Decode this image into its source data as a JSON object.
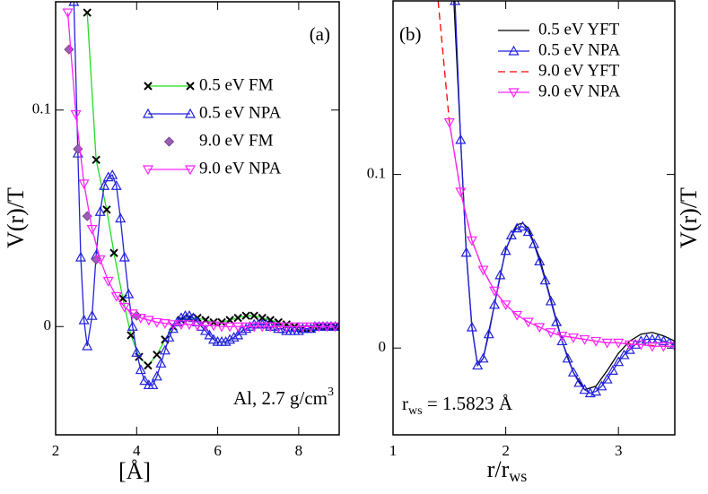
{
  "chart_data": [
    {
      "type": "line",
      "xlabel": "[Å]",
      "ylabel": "V(r)/T",
      "annotations": [
        {
          "text": "(a)"
        },
        {
          "text": "Al, 2.7 g/cm",
          "sup": "3"
        }
      ],
      "xlim": [
        2,
        9
      ],
      "ylim": [
        -0.05,
        0.15
      ],
      "xticks": [
        2,
        4,
        6,
        8
      ],
      "yticks": [
        0,
        0.1
      ],
      "legend": "upper right",
      "series": [
        {
          "name": "0.5 eV FM",
          "color": "#22dd22",
          "marker": "x",
          "line": true,
          "x": [
            2.78,
            3.0,
            3.26,
            3.44,
            3.66,
            3.86,
            4.06,
            4.28,
            4.5,
            4.7,
            4.9,
            5.1,
            5.3,
            5.5,
            5.7,
            5.9,
            6.1,
            6.3,
            6.5,
            6.7,
            6.9,
            7.1,
            7.3,
            7.5,
            7.7,
            7.9,
            8.1,
            8.3,
            8.5,
            8.7,
            8.9
          ],
          "values": [
            0.145,
            0.077,
            0.054,
            0.034,
            0.013,
            -0.004,
            -0.014,
            -0.018,
            -0.013,
            -0.006,
            0.0,
            0.003,
            0.004,
            0.004,
            0.003,
            0.002,
            0.002,
            0.003,
            0.004,
            0.005,
            0.005,
            0.004,
            0.003,
            0.002,
            0.001,
            0.0,
            -0.001,
            -0.001,
            0.0,
            0.0,
            0.0
          ]
        },
        {
          "name": "0.5 eV NPA",
          "color": "#2222dd",
          "marker": "triangle-up",
          "line": true,
          "x": [
            2.45,
            2.55,
            2.62,
            2.7,
            2.78,
            2.9,
            3.0,
            3.1,
            3.2,
            3.3,
            3.4,
            3.5,
            3.6,
            3.7,
            3.8,
            3.9,
            4.0,
            4.1,
            4.2,
            4.3,
            4.4,
            4.5,
            4.6,
            4.7,
            4.8,
            4.9,
            5.0,
            5.1,
            5.2,
            5.3,
            5.4,
            5.5,
            5.6,
            5.7,
            5.8,
            5.9,
            6.0,
            6.1,
            6.2,
            6.3,
            6.4,
            6.5,
            6.6,
            6.7,
            6.8,
            6.9,
            7.0,
            7.1,
            7.2,
            7.3,
            7.4,
            7.5,
            7.6,
            7.7,
            7.8,
            7.9,
            8.0,
            8.1,
            8.2,
            8.3,
            8.4,
            8.5,
            8.6,
            8.7,
            8.8,
            8.9,
            9.0
          ],
          "values": [
            0.15,
            0.08,
            0.032,
            0.003,
            -0.009,
            0.005,
            0.033,
            0.053,
            0.065,
            0.069,
            0.07,
            0.065,
            0.05,
            0.032,
            0.015,
            0.0,
            -0.012,
            -0.02,
            -0.025,
            -0.027,
            -0.027,
            -0.023,
            -0.017,
            -0.011,
            -0.005,
            -0.001,
            0.002,
            0.004,
            0.005,
            0.005,
            0.004,
            0.002,
            0.0,
            -0.002,
            -0.004,
            -0.006,
            -0.007,
            -0.007,
            -0.007,
            -0.006,
            -0.005,
            -0.004,
            -0.002,
            -0.001,
            0.0,
            0.001,
            0.001,
            0.001,
            0.001,
            0.0,
            0.0,
            -0.001,
            -0.001,
            -0.002,
            -0.002,
            -0.002,
            -0.002,
            -0.001,
            -0.001,
            -0.001,
            0.0,
            0.0,
            0.0,
            0.0,
            0.0,
            0.0,
            0.0
          ]
        },
        {
          "name": "9.0 eV FM",
          "color": "#9a5fb4",
          "marker": "diamond",
          "line": false,
          "x": [
            2.33,
            2.55,
            2.78,
            3.0,
            4.0
          ],
          "values": [
            0.128,
            0.082,
            0.051,
            0.031,
            0.005
          ]
        },
        {
          "name": "9.0 eV  NPA",
          "color": "#ff22ff",
          "marker": "triangle-down",
          "line": true,
          "x": [
            2.3,
            2.5,
            2.7,
            2.9,
            3.1,
            3.3,
            3.5,
            3.7,
            3.9,
            4.1,
            4.3,
            4.5,
            4.7,
            4.9,
            5.1,
            5.3,
            5.5,
            5.7,
            5.9,
            6.1,
            6.3,
            6.5,
            6.7,
            6.9,
            7.1,
            7.3,
            7.5,
            7.7,
            7.9,
            8.1,
            8.3,
            8.5,
            8.7,
            8.9
          ],
          "values": [
            0.145,
            0.098,
            0.066,
            0.045,
            0.031,
            0.021,
            0.014,
            0.009,
            0.006,
            0.004,
            0.003,
            0.002,
            0.0015,
            0.001,
            0.001,
            0.001,
            0.0005,
            0.0005,
            0.0005,
            0.0,
            0.0,
            0.0,
            0.0,
            0.0,
            0.0,
            0.0,
            0.0,
            0.0,
            0.0,
            0.0,
            0.0,
            0.0,
            0.0,
            0.0
          ]
        }
      ]
    },
    {
      "type": "line",
      "xlabel": {
        "text": "r/r",
        "sub": "ws"
      },
      "ylabel": "V(r)/T",
      "annotations": [
        {
          "text": "(b)"
        },
        {
          "text": "r",
          "sub": "ws",
          "tail": " = 1.5823 Å"
        }
      ],
      "xlim": [
        1,
        3.5
      ],
      "ylim": [
        -0.05,
        0.2
      ],
      "xticks": [
        1,
        2,
        3
      ],
      "yticks": [
        0,
        0.1
      ],
      "legend": "upper right",
      "series": [
        {
          "name": "0.5 eV YFT",
          "color": "#000000",
          "line": true,
          "x": [
            1.54,
            1.6,
            1.65,
            1.7,
            1.75,
            1.8,
            1.9,
            2.0,
            2.1,
            2.15,
            2.2,
            2.3,
            2.4,
            2.5,
            2.6,
            2.7,
            2.8,
            2.9,
            3.0,
            3.1,
            3.2,
            3.3,
            3.4,
            3.5
          ],
          "values": [
            0.2,
            0.12,
            0.055,
            0.012,
            -0.01,
            -0.006,
            0.025,
            0.057,
            0.071,
            0.072,
            0.069,
            0.052,
            0.028,
            0.004,
            -0.014,
            -0.024,
            -0.022,
            -0.013,
            -0.003,
            0.004,
            0.008,
            0.009,
            0.007,
            0.004
          ]
        },
        {
          "name": "0.5 eV NPA",
          "color": "#2222dd",
          "marker": "triangle-up",
          "line": true,
          "x": [
            1.55,
            1.6,
            1.65,
            1.7,
            1.75,
            1.8,
            1.85,
            1.9,
            1.95,
            2.0,
            2.05,
            2.1,
            2.15,
            2.2,
            2.25,
            2.3,
            2.35,
            2.4,
            2.45,
            2.5,
            2.55,
            2.6,
            2.65,
            2.7,
            2.75,
            2.8,
            2.85,
            2.9,
            2.95,
            3.0,
            3.05,
            3.1,
            3.15,
            3.2,
            3.25,
            3.3,
            3.35,
            3.4,
            3.45,
            3.5
          ],
          "values": [
            0.2,
            0.12,
            0.055,
            0.012,
            -0.01,
            -0.006,
            0.008,
            0.025,
            0.042,
            0.056,
            0.065,
            0.069,
            0.07,
            0.067,
            0.06,
            0.05,
            0.039,
            0.027,
            0.015,
            0.004,
            -0.006,
            -0.014,
            -0.02,
            -0.024,
            -0.026,
            -0.025,
            -0.022,
            -0.018,
            -0.013,
            -0.008,
            -0.004,
            -0.001,
            0.002,
            0.004,
            0.005,
            0.005,
            0.005,
            0.004,
            0.003,
            0.002
          ]
        },
        {
          "name": "9.0 eV YFT",
          "color": "#ff0000",
          "dash": true,
          "line": true,
          "x": [
            1.4,
            1.5,
            1.6,
            1.7,
            1.8,
            1.9,
            2.0,
            2.1,
            2.2,
            2.3,
            2.4,
            2.5,
            2.6,
            2.7,
            2.8,
            2.9,
            3.0,
            3.2,
            3.4,
            3.5
          ],
          "values": [
            0.2,
            0.13,
            0.09,
            0.062,
            0.045,
            0.033,
            0.025,
            0.019,
            0.015,
            0.012,
            0.009,
            0.007,
            0.006,
            0.005,
            0.004,
            0.003,
            0.003,
            0.002,
            0.001,
            0.001
          ]
        },
        {
          "name": "9.0 eV NPA",
          "color": "#ff22ff",
          "marker": "triangle-down",
          "line": true,
          "x": [
            1.5,
            1.6,
            1.7,
            1.8,
            1.9,
            2.0,
            2.1,
            2.2,
            2.3,
            2.4,
            2.5,
            2.6,
            2.7,
            2.8,
            2.9,
            3.0,
            3.1,
            3.2,
            3.3,
            3.4,
            3.5
          ],
          "values": [
            0.13,
            0.09,
            0.062,
            0.045,
            0.033,
            0.025,
            0.019,
            0.015,
            0.012,
            0.009,
            0.007,
            0.006,
            0.005,
            0.004,
            0.003,
            0.003,
            0.002,
            0.002,
            0.001,
            0.001,
            0.001
          ]
        }
      ]
    }
  ]
}
